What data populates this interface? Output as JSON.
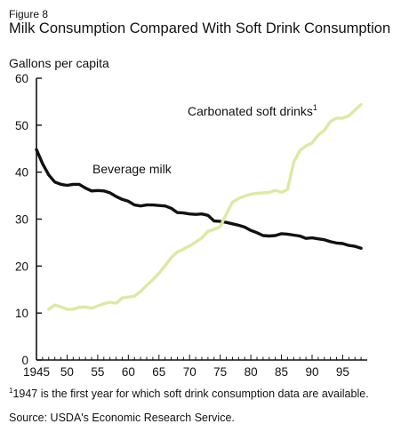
{
  "figure_label": "Figure 8",
  "title": "Milk Consumption Compared With Soft Drink Consumption",
  "unit_label": "Gallons per capita",
  "footnote": {
    "marker": "1",
    "text": "1947 is the first year for which soft drink consumption data are available."
  },
  "source": "Source:  USDA's Economic Research Service.",
  "colors": {
    "milk": "#111111",
    "soft_drinks": "#dde8a4"
  },
  "chart_data": {
    "type": "line",
    "ylabel": "Gallons per capita",
    "ylim": [
      0,
      60
    ],
    "yticks": [
      0,
      10,
      20,
      30,
      40,
      50,
      60
    ],
    "xlim": [
      1945,
      1999
    ],
    "xtick_labels": [
      "1945",
      "50",
      "55",
      "60",
      "65",
      "70",
      "75",
      "80",
      "85",
      "90",
      "95"
    ],
    "xtick_values": [
      1945,
      1950,
      1955,
      1960,
      1965,
      1970,
      1975,
      1980,
      1985,
      1990,
      1995
    ],
    "grid": false,
    "legend": "none",
    "series": [
      {
        "name": "Beverage milk",
        "x": [
          1945,
          1946,
          1947,
          1948,
          1949,
          1950,
          1951,
          1952,
          1953,
          1954,
          1955,
          1956,
          1957,
          1958,
          1959,
          1960,
          1961,
          1962,
          1963,
          1964,
          1965,
          1966,
          1967,
          1968,
          1969,
          1970,
          1971,
          1972,
          1973,
          1974,
          1975,
          1976,
          1977,
          1978,
          1979,
          1980,
          1981,
          1982,
          1983,
          1984,
          1985,
          1986,
          1987,
          1988,
          1989,
          1990,
          1991,
          1992,
          1993,
          1994,
          1995,
          1996,
          1997,
          1998
        ],
        "values": [
          44.8,
          41.8,
          39.4,
          37.9,
          37.4,
          37.2,
          37.4,
          37.4,
          36.6,
          36.0,
          36.1,
          36.0,
          35.6,
          34.8,
          34.2,
          33.8,
          33.0,
          32.8,
          33.0,
          33.0,
          32.9,
          32.8,
          32.3,
          31.4,
          31.3,
          31.1,
          31.0,
          31.1,
          30.8,
          29.6,
          29.5,
          29.3,
          29.0,
          28.7,
          28.3,
          27.6,
          27.1,
          26.5,
          26.4,
          26.5,
          26.9,
          26.8,
          26.6,
          26.4,
          25.9,
          26.0,
          25.8,
          25.6,
          25.2,
          24.9,
          24.8,
          24.4,
          24.2,
          23.8
        ]
      },
      {
        "name": "Carbonated soft drinks",
        "name_superscript": "1",
        "x": [
          1947,
          1948,
          1949,
          1950,
          1951,
          1952,
          1953,
          1954,
          1955,
          1956,
          1957,
          1958,
          1959,
          1960,
          1961,
          1962,
          1963,
          1964,
          1965,
          1966,
          1967,
          1968,
          1969,
          1970,
          1971,
          1972,
          1973,
          1974,
          1975,
          1976,
          1977,
          1978,
          1979,
          1980,
          1981,
          1982,
          1983,
          1984,
          1985,
          1986,
          1987,
          1988,
          1989,
          1990,
          1991,
          1992,
          1993,
          1994,
          1995,
          1996,
          1997,
          1998
        ],
        "values": [
          10.8,
          11.7,
          11.3,
          10.8,
          10.8,
          11.2,
          11.3,
          11.0,
          11.5,
          12.0,
          12.3,
          12.1,
          13.2,
          13.4,
          13.6,
          14.6,
          15.9,
          17.1,
          18.5,
          20.1,
          21.8,
          23.0,
          23.6,
          24.3,
          25.1,
          26.0,
          27.4,
          27.8,
          28.4,
          31.1,
          33.6,
          34.4,
          34.9,
          35.3,
          35.5,
          35.6,
          35.7,
          36.1,
          35.7,
          36.3,
          42.1,
          44.6,
          45.6,
          46.2,
          47.9,
          48.9,
          50.8,
          51.5,
          51.5,
          52.0,
          53.2,
          54.4
        ]
      }
    ]
  }
}
